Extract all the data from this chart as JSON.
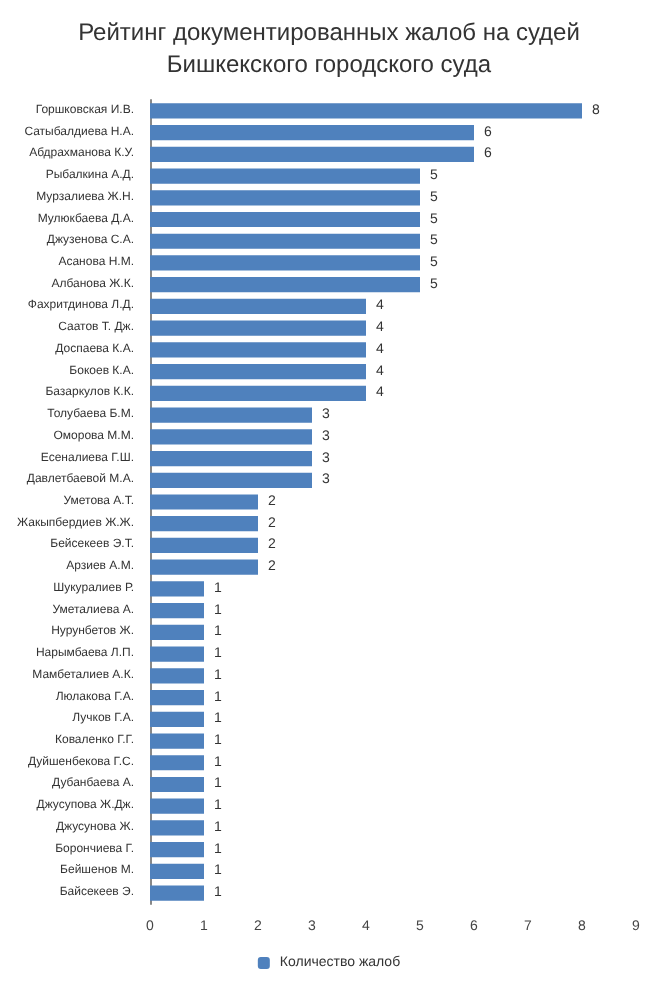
{
  "chart_data": {
    "type": "bar",
    "orientation": "horizontal",
    "title": "Рейтинг документированных жалоб на судей Бишкекского городского суда",
    "categories": [
      "Горшковская И.В.",
      "Сатыбалдиева Н.А.",
      "Абдрахманова К.У.",
      "Рыбалкина А.Д.",
      "Мурзалиева Ж.Н.",
      "Мулюкбаева Д.А.",
      "Джузенова С.А.",
      "Асанова Н.М.",
      "Албанова Ж.К.",
      "Фахритдинова Л.Д.",
      "Саатов Т. Дж.",
      "Доспаева К.А.",
      "Бокоев К.А.",
      "Базаркулов К.К.",
      "Толубаева Б.М.",
      "Оморова М.М.",
      "Есеналиева Г.Ш.",
      "Давлетбаевой М.А.",
      "Уметова А.Т.",
      "Жакыпбердиев Ж.Ж.",
      "Бейсекеев Э.Т.",
      "Арзиев А.М.",
      "Шукуралиев Р.",
      "Уметалиева А.",
      "Нурунбетов Ж.",
      "Нарымбаева Л.П.",
      "Мамбеталиев А.К.",
      "Люлакова Г.А.",
      "Лучков Г.А.",
      "Коваленко Г.Г.",
      "Дуйшенбекова Г.С.",
      "Дубанбаева А.",
      "Джусупова Ж.Дж.",
      "Джусунова Ж.",
      "Борончиева Г.",
      "Бейшенов М.",
      "Байсекеев Э."
    ],
    "series": [
      {
        "name": "Количество жалоб",
        "color": "#4f81bd",
        "values": [
          8,
          6,
          6,
          5,
          5,
          5,
          5,
          5,
          5,
          4,
          4,
          4,
          4,
          4,
          3,
          3,
          3,
          3,
          2,
          2,
          2,
          2,
          1,
          1,
          1,
          1,
          1,
          1,
          1,
          1,
          1,
          1,
          1,
          1,
          1,
          1,
          1
        ]
      }
    ],
    "xlim": [
      0,
      9
    ],
    "xticks": [
      0,
      1,
      2,
      3,
      4,
      5,
      6,
      7,
      8,
      9
    ],
    "data_labels": true,
    "legend": "bottom",
    "grid": false
  }
}
